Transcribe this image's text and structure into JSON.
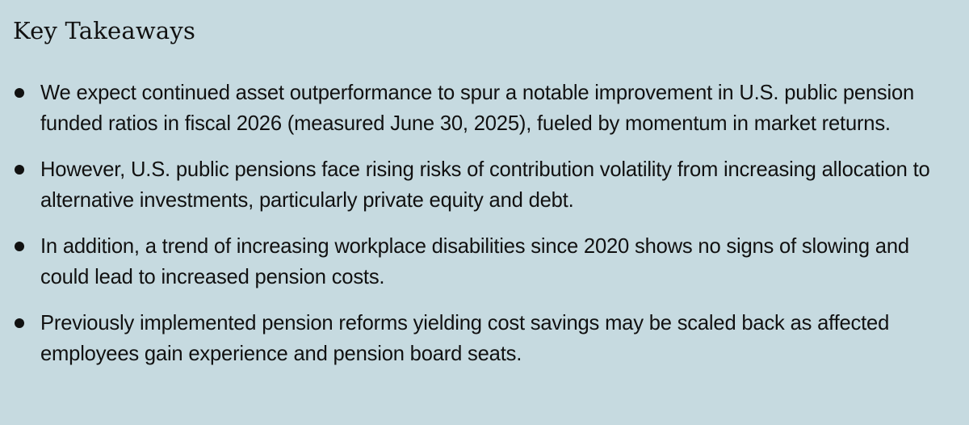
{
  "heading": "Key Takeaways",
  "takeaways": [
    "We expect continued asset outperformance to spur a notable improvement in U.S. public pension funded ratios in fiscal 2026 (measured June 30, 2025), fueled by momentum in market returns.",
    "However, U.S. public pensions face rising risks of contribution volatility from increasing allocation to alternative investments, particularly private equity and debt.",
    "In addition, a trend of increasing workplace disabilities since 2020 shows no signs of slowing and could lead to increased pension costs.",
    "Previously implemented pension reforms yielding cost savings may be scaled back as affected employees gain experience and pension board seats."
  ],
  "colors": {
    "background": "#c6dae0",
    "text": "#111111"
  }
}
